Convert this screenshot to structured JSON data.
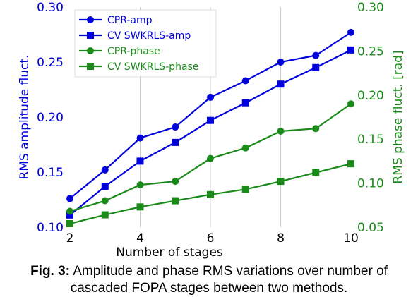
{
  "chart_data": {
    "type": "line",
    "x": [
      2,
      3,
      4,
      5,
      6,
      7,
      8,
      9,
      10
    ],
    "xlabel": "Number of stages",
    "xlim": [
      2,
      10
    ],
    "xticks": [
      2,
      4,
      6,
      8,
      10
    ],
    "ylabel_left": "RMS amplitude fluct.",
    "ylim_left": [
      0.1,
      0.3
    ],
    "yticks_left": [
      "0.10",
      "0.15",
      "0.20",
      "0.25",
      "0.30"
    ],
    "ylabel_right": "RMS phase fluct. [rad]",
    "ylim_right": [
      0.05,
      0.3
    ],
    "yticks_right": [
      "0.05",
      "0.10",
      "0.15",
      "0.20",
      "0.25",
      "0.30"
    ],
    "grid": "vertical",
    "legend_position": "top-left",
    "series": [
      {
        "name": "CPR-amp",
        "axis": "left",
        "color": "#0000dd",
        "marker": "circle",
        "values": [
          0.126,
          0.152,
          0.181,
          0.191,
          0.218,
          0.233,
          0.25,
          0.256,
          0.277
        ]
      },
      {
        "name": "CV SWKRLS-amp",
        "axis": "left",
        "color": "#0000dd",
        "marker": "square",
        "values": [
          0.111,
          0.137,
          0.16,
          0.177,
          0.197,
          0.213,
          0.23,
          0.245,
          0.261
        ]
      },
      {
        "name": "CPR-phase",
        "axis": "right",
        "color": "#1a8a1a",
        "marker": "circle",
        "values": [
          0.068,
          0.08,
          0.098,
          0.102,
          0.128,
          0.14,
          0.159,
          0.162,
          0.19
        ]
      },
      {
        "name": "CV SWKRLS-phase",
        "axis": "right",
        "color": "#1a8a1a",
        "marker": "square",
        "values": [
          0.054,
          0.064,
          0.073,
          0.08,
          0.087,
          0.093,
          0.102,
          0.112,
          0.122
        ]
      }
    ]
  },
  "caption": {
    "label": "Fig. 3:",
    "text": "Amplitude and phase RMS variations over number of cascaded FOPA stages between two methods."
  }
}
